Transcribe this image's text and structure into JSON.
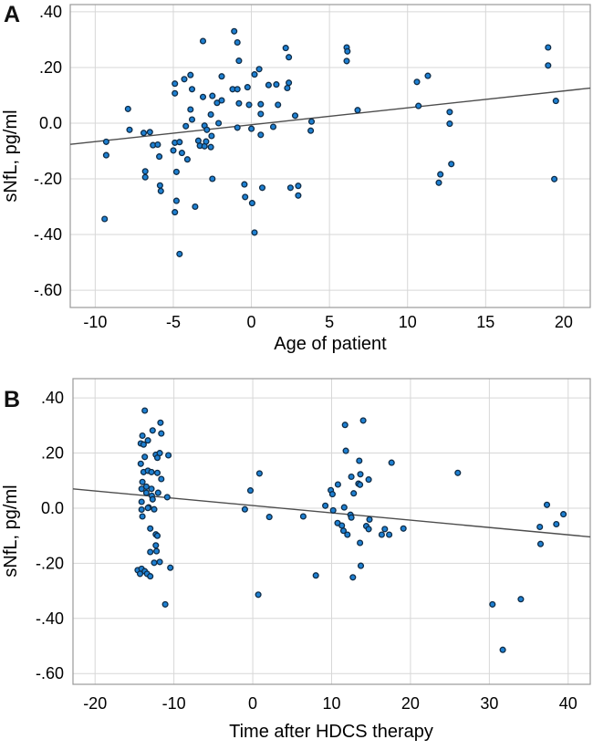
{
  "figure": {
    "background": "#ffffff"
  },
  "colors": {
    "point_fill": "#1e80d2",
    "point_stroke": "#0f2c47",
    "trend_line": "#4d4d4d",
    "gridline": "#d7d7d7",
    "frame": "#9a9a9a",
    "text": "#000000"
  },
  "chart_data": [
    {
      "type": "scatter",
      "panel_label": "A",
      "xlabel": "Age of patient",
      "ylabel": "sNfL, pg/ml",
      "xlim": [
        -11.6,
        21.7
      ],
      "ylim": [
        -0.662,
        0.426
      ],
      "grid": true,
      "legend": "none",
      "x_ticks": [
        {
          "v": -10,
          "label": "-10"
        },
        {
          "v": -5,
          "label": "-5"
        },
        {
          "v": 0,
          "label": "0"
        },
        {
          "v": 5,
          "label": "5"
        },
        {
          "v": 10,
          "label": "10"
        },
        {
          "v": 15,
          "label": "15"
        },
        {
          "v": 20,
          "label": "20"
        }
      ],
      "y_ticks": [
        {
          "v": 0.4,
          "label": ".40"
        },
        {
          "v": 0.2,
          "label": ".20"
        },
        {
          "v": 0.0,
          "label": "0.0"
        },
        {
          "v": -0.2,
          "label": "-.20"
        },
        {
          "v": -0.4,
          "label": "-.40"
        },
        {
          "v": -0.6,
          "label": "-.60"
        }
      ],
      "trend_line": {
        "x1": -11.6,
        "y1": -0.076,
        "x2": 21.7,
        "y2": 0.126
      },
      "points": [
        [
          -9.4,
          -0.344
        ],
        [
          -9.3,
          -0.067
        ],
        [
          -9.3,
          -0.115
        ],
        [
          -7.9,
          0.051
        ],
        [
          -7.8,
          -0.024
        ],
        [
          -6.9,
          -0.035
        ],
        [
          -6.5,
          -0.032
        ],
        [
          -6.8,
          -0.173
        ],
        [
          -6.8,
          -0.194
        ],
        [
          -6.3,
          -0.079
        ],
        [
          -6.0,
          -0.077
        ],
        [
          -5.9,
          -0.12
        ],
        [
          -5.85,
          -0.224
        ],
        [
          -5.8,
          -0.244
        ],
        [
          -5.0,
          -0.098
        ],
        [
          -4.9,
          -0.07
        ],
        [
          -4.6,
          -0.068
        ],
        [
          -4.45,
          -0.107
        ],
        [
          -4.1,
          -0.13
        ],
        [
          -4.8,
          -0.175
        ],
        [
          -4.8,
          -0.279
        ],
        [
          -4.9,
          -0.32
        ],
        [
          -4.6,
          -0.47
        ],
        [
          -3.6,
          -0.3
        ],
        [
          -4.9,
          0.142
        ],
        [
          -4.9,
          0.107
        ],
        [
          -4.3,
          0.158
        ],
        [
          -3.9,
          0.173
        ],
        [
          -3.8,
          0.122
        ],
        [
          -3.9,
          0.049
        ],
        [
          -3.8,
          0.013
        ],
        [
          -4.2,
          -0.011
        ],
        [
          -3.4,
          -0.063
        ],
        [
          -3.3,
          -0.081
        ],
        [
          -3.0,
          -0.083
        ],
        [
          -2.9,
          -0.066
        ],
        [
          -2.6,
          -0.086
        ],
        [
          -3.1,
          0.295
        ],
        [
          -3.1,
          0.094
        ],
        [
          -3.0,
          -0.009
        ],
        [
          -2.85,
          -0.024
        ],
        [
          -2.6,
          0.031
        ],
        [
          -2.55,
          -0.046
        ],
        [
          -2.5,
          0.098
        ],
        [
          -2.5,
          -0.2
        ],
        [
          -2.2,
          0.073
        ],
        [
          -2.1,
          0.0
        ],
        [
          -1.9,
          0.168
        ],
        [
          -1.9,
          0.082
        ],
        [
          -1.2,
          0.122
        ],
        [
          -1.1,
          0.33
        ],
        [
          -0.9,
          0.29
        ],
        [
          -0.9,
          0.122
        ],
        [
          -0.9,
          -0.016
        ],
        [
          -0.8,
          0.224
        ],
        [
          -0.8,
          0.071
        ],
        [
          -0.45,
          -0.22
        ],
        [
          -0.4,
          -0.265
        ],
        [
          -0.25,
          0.129
        ],
        [
          -0.15,
          0.066
        ],
        [
          0.0,
          -0.02
        ],
        [
          0.05,
          -0.287
        ],
        [
          0.2,
          0.175
        ],
        [
          0.2,
          -0.393
        ],
        [
          0.5,
          0.194
        ],
        [
          0.6,
          0.068
        ],
        [
          0.6,
          0.033
        ],
        [
          0.6,
          -0.042
        ],
        [
          0.7,
          -0.232
        ],
        [
          1.1,
          0.137
        ],
        [
          1.4,
          -0.013
        ],
        [
          1.6,
          0.139
        ],
        [
          1.7,
          0.066
        ],
        [
          2.2,
          0.27
        ],
        [
          2.3,
          0.126
        ],
        [
          2.4,
          0.237
        ],
        [
          2.4,
          0.145
        ],
        [
          2.5,
          -0.232
        ],
        [
          2.8,
          0.027
        ],
        [
          3.0,
          -0.225
        ],
        [
          3.0,
          -0.26
        ],
        [
          3.8,
          -0.027
        ],
        [
          3.85,
          0.006
        ],
        [
          6.1,
          0.272
        ],
        [
          6.15,
          0.258
        ],
        [
          6.1,
          0.223
        ],
        [
          6.8,
          0.047
        ],
        [
          10.6,
          0.148
        ],
        [
          11.3,
          0.17
        ],
        [
          10.7,
          0.062
        ],
        [
          12.7,
          0.04
        ],
        [
          12.7,
          -0.002
        ],
        [
          12.8,
          -0.147
        ],
        [
          12.1,
          -0.184
        ],
        [
          12.0,
          -0.214
        ],
        [
          19.0,
          0.272
        ],
        [
          19.0,
          0.207
        ],
        [
          19.5,
          0.08
        ],
        [
          19.4,
          -0.201
        ]
      ]
    },
    {
      "type": "scatter",
      "panel_label": "B",
      "xlabel": "Time after HDCS therapy",
      "ylabel": "sNfL, pg/ml",
      "xlim": [
        -22.8,
        42.8
      ],
      "ylim": [
        -0.639,
        0.47
      ],
      "grid": true,
      "legend": "none",
      "x_ticks": [
        {
          "v": -20,
          "label": "-20"
        },
        {
          "v": -10,
          "label": "-10"
        },
        {
          "v": 0,
          "label": "0"
        },
        {
          "v": 10,
          "label": "10"
        },
        {
          "v": 20,
          "label": "20"
        },
        {
          "v": 30,
          "label": "30"
        },
        {
          "v": 40,
          "label": "40"
        }
      ],
      "y_ticks": [
        {
          "v": 0.4,
          "label": ".40"
        },
        {
          "v": 0.2,
          "label": ".20"
        },
        {
          "v": 0.0,
          "label": "0.0"
        },
        {
          "v": -0.2,
          "label": "-.20"
        },
        {
          "v": -0.4,
          "label": "-.40"
        },
        {
          "v": -0.6,
          "label": "-.60"
        }
      ],
      "trend_line": {
        "x1": -22.8,
        "y1": 0.07,
        "x2": 42.8,
        "y2": -0.104
      },
      "points": [
        [
          -13.7,
          0.354
        ],
        [
          -11.7,
          0.31
        ],
        [
          -12.7,
          0.282
        ],
        [
          -11.6,
          0.271
        ],
        [
          -14.0,
          0.263
        ],
        [
          -13.3,
          0.246
        ],
        [
          -14.2,
          0.235
        ],
        [
          -13.85,
          0.231
        ],
        [
          -12.3,
          0.194
        ],
        [
          -11.8,
          0.2
        ],
        [
          -12.1,
          0.183
        ],
        [
          -10.7,
          0.192
        ],
        [
          -13.7,
          0.186
        ],
        [
          -14.2,
          0.161
        ],
        [
          -13.85,
          0.131
        ],
        [
          -13.3,
          0.136
        ],
        [
          -12.85,
          0.131
        ],
        [
          -12.1,
          0.128
        ],
        [
          -11.6,
          0.106
        ],
        [
          -14.0,
          0.095
        ],
        [
          -13.5,
          0.078
        ],
        [
          -14.1,
          0.07
        ],
        [
          -12.85,
          0.07
        ],
        [
          -13.5,
          0.056
        ],
        [
          -12.8,
          0.045
        ],
        [
          -12.0,
          0.056
        ],
        [
          -10.85,
          0.04
        ],
        [
          -12.7,
          0.032
        ],
        [
          -14.1,
          0.023
        ],
        [
          -13.2,
          0.003
        ],
        [
          -14.1,
          -0.005
        ],
        [
          -13.3,
          0.001
        ],
        [
          -12.5,
          -0.004
        ],
        [
          -14.0,
          -0.03
        ],
        [
          -13.0,
          -0.074
        ],
        [
          -12.3,
          -0.095
        ],
        [
          -12.1,
          -0.1
        ],
        [
          -12.3,
          -0.135
        ],
        [
          -13.0,
          -0.159
        ],
        [
          -12.2,
          -0.156
        ],
        [
          -12.5,
          -0.198
        ],
        [
          -11.8,
          -0.195
        ],
        [
          -10.45,
          -0.216
        ],
        [
          -14.6,
          -0.225
        ],
        [
          -14.1,
          -0.22
        ],
        [
          -13.7,
          -0.229
        ],
        [
          -14.3,
          -0.238
        ],
        [
          -13.4,
          -0.238
        ],
        [
          -13.0,
          -0.247
        ],
        [
          -11.1,
          -0.349
        ],
        [
          0.85,
          0.126
        ],
        [
          -0.3,
          0.064
        ],
        [
          -1.0,
          -0.004
        ],
        [
          2.1,
          -0.032
        ],
        [
          0.7,
          -0.314
        ],
        [
          6.4,
          -0.03
        ],
        [
          11.7,
          0.302
        ],
        [
          14.0,
          0.318
        ],
        [
          11.8,
          0.208
        ],
        [
          13.5,
          0.172
        ],
        [
          17.6,
          0.165
        ],
        [
          12.5,
          0.114
        ],
        [
          13.65,
          0.123
        ],
        [
          14.7,
          0.104
        ],
        [
          13.4,
          0.089
        ],
        [
          13.6,
          0.085
        ],
        [
          10.8,
          0.086
        ],
        [
          9.9,
          0.065
        ],
        [
          10.1,
          0.051
        ],
        [
          12.8,
          0.054
        ],
        [
          9.2,
          0.009
        ],
        [
          10.2,
          -0.008
        ],
        [
          11.6,
          0.003
        ],
        [
          12.4,
          -0.024
        ],
        [
          12.5,
          -0.034
        ],
        [
          14.8,
          -0.041
        ],
        [
          10.75,
          -0.054
        ],
        [
          11.3,
          -0.063
        ],
        [
          11.5,
          -0.082
        ],
        [
          12.0,
          -0.096
        ],
        [
          14.4,
          -0.065
        ],
        [
          14.7,
          -0.076
        ],
        [
          16.75,
          -0.076
        ],
        [
          16.35,
          -0.096
        ],
        [
          17.3,
          -0.096
        ],
        [
          19.1,
          -0.074
        ],
        [
          13.6,
          -0.126
        ],
        [
          13.7,
          -0.209
        ],
        [
          12.7,
          -0.251
        ],
        [
          8.0,
          -0.244
        ],
        [
          26.0,
          0.128
        ],
        [
          37.3,
          0.012
        ],
        [
          39.4,
          -0.022
        ],
        [
          36.4,
          -0.068
        ],
        [
          38.5,
          -0.058
        ],
        [
          36.5,
          -0.13
        ],
        [
          30.4,
          -0.349
        ],
        [
          34.0,
          -0.33
        ],
        [
          31.7,
          -0.514
        ]
      ]
    }
  ]
}
